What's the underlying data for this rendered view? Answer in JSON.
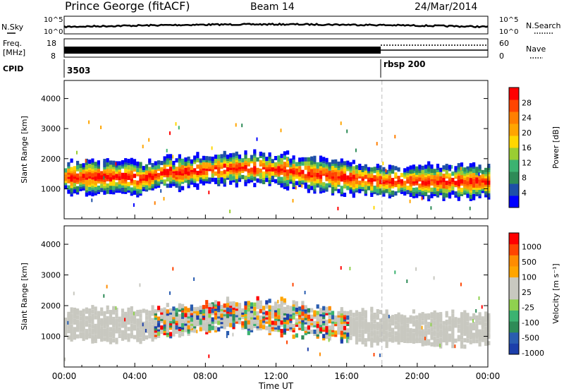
{
  "header": {
    "station": "Prince George (fitACF)",
    "beam": "Beam 14",
    "date": "24/Mar/2014"
  },
  "params_panel": {
    "nsky_label": "N.Sky",
    "nsky_ticks": [
      "10^5",
      "10^0"
    ],
    "nsearch_label": "N.Search",
    "nsearch_ticks": [
      "10^5",
      "10^0"
    ],
    "freq_label_1": "Freq.",
    "freq_label_2": "[MHz]",
    "freq_ticks": [
      "18",
      "8"
    ],
    "nave_label": "Nave",
    "nave_ticks": [
      "60",
      "0"
    ],
    "cpid_label": "CPID",
    "cpid_segments": [
      {
        "label": "3503",
        "start_hour": 0
      },
      {
        "label": "rbsp 200",
        "start_hour": 18
      }
    ]
  },
  "chart_data": [
    {
      "type": "heatmap",
      "name": "power-panel",
      "ylabel": "Slant Range [km]",
      "yticks": [
        1000,
        2000,
        3000,
        4000
      ],
      "ylim": [
        0,
        4600
      ],
      "xlim": [
        0,
        24
      ],
      "colorbar": {
        "label": "Power [dB]",
        "ticks": [
          "4",
          "8",
          "12",
          "16",
          "20",
          "24",
          "28"
        ],
        "colors": [
          "#0000ff",
          "#1e4fa8",
          "#2e8b57",
          "#3cb371",
          "#9acd32",
          "#ffd700",
          "#ffa500",
          "#ff7f00",
          "#ff4500",
          "#ff0000"
        ]
      }
    },
    {
      "type": "heatmap",
      "name": "velocity-panel",
      "ylabel": "Slant Range [km]",
      "yticks": [
        1000,
        2000,
        3000,
        4000
      ],
      "ylim": [
        0,
        4600
      ],
      "xlim": [
        0,
        24
      ],
      "xlabel": "Time UT",
      "xticks": [
        "00:00",
        "04:00",
        "08:00",
        "12:00",
        "16:00",
        "20:00",
        "00:00"
      ],
      "colorbar": {
        "label": "Velocity [m s⁻¹]",
        "ticks": [
          "1000",
          "500",
          "100",
          "25",
          "-25",
          "-100",
          "-500",
          "-1000"
        ],
        "colors": [
          "#1c3faa",
          "#2a5db0",
          "#2e8b57",
          "#3cb371",
          "#8fd14f",
          "#c8c8c0",
          "#c8c8c0",
          "#ffa500",
          "#ff8c00",
          "#ff4500",
          "#ff0000"
        ]
      }
    }
  ]
}
